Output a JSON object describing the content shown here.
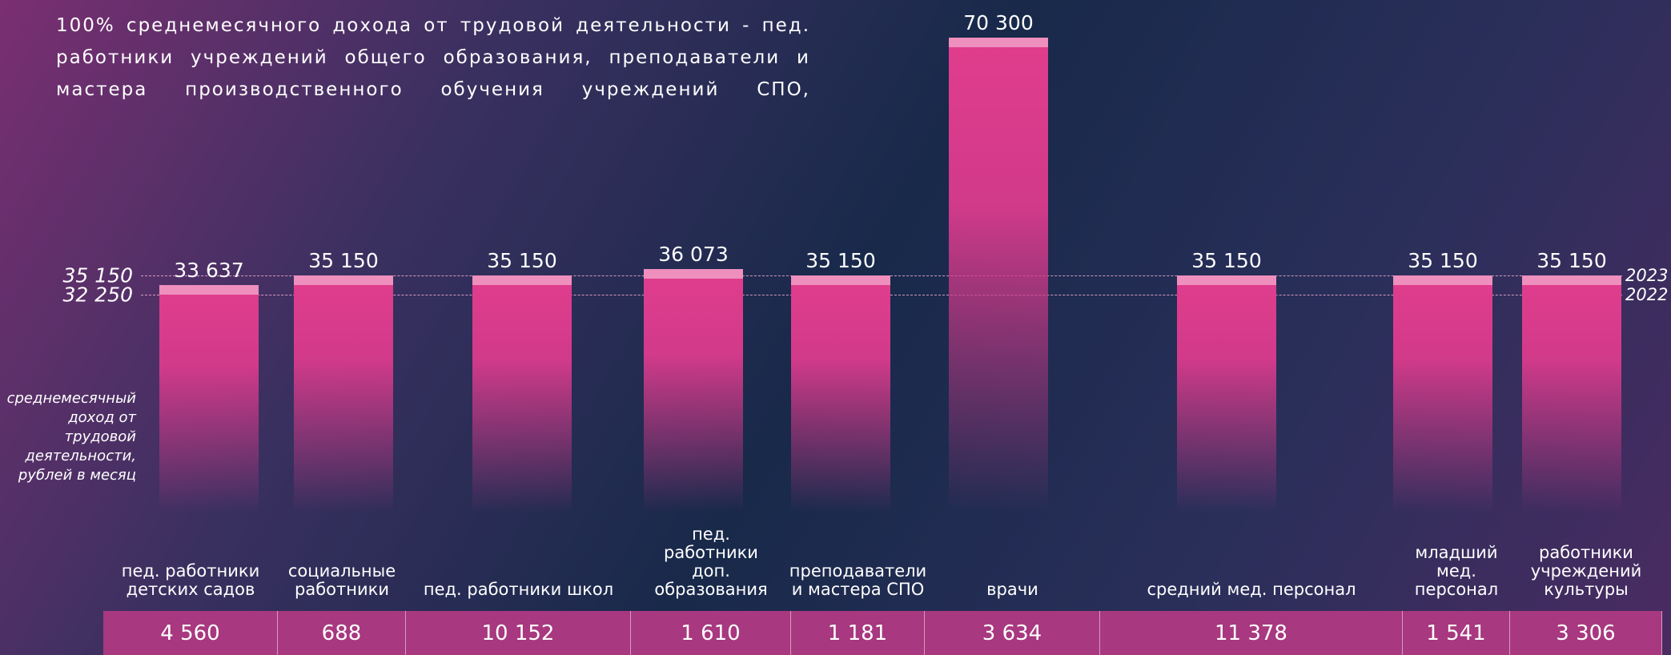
{
  "chart_data": {
    "type": "bar",
    "title": "100% среднемесячного дохода от трудовой деятельности - пед. работники учреждений общего образования, преподаватели и мастера производственного обучения учреждений СПО, работники",
    "y_label": "среднемесячный доход от трудовой деятельности, рублей в месяц",
    "categories": [
      "пед. работники\nдетских садов",
      "социальные\nработники",
      "пед. работники школ",
      "пед.\nработники\nдоп.\nобразования",
      "преподаватели\nи мастера СПО",
      "врачи",
      "средний мед. персонал",
      "младший\nмед.\nперсонал",
      "работники\nучреждений\nкультуры"
    ],
    "values": [
      33637,
      35150,
      35150,
      36073,
      35150,
      70300,
      35150,
      35150,
      35150
    ],
    "value_labels": [
      "33 637",
      "35 150",
      "35 150",
      "36 073",
      "35 150",
      "70 300",
      "35 150",
      "35 150",
      "35 150"
    ],
    "color": "#d63a8a",
    "ylim": [
      0,
      72000
    ],
    "yticks": [
      {
        "value": 35150,
        "label": "35 150"
      },
      {
        "value": 32250,
        "label": "32 250"
      }
    ],
    "ytick_notes": [
      "2023",
      "2022"
    ],
    "bottom_row": [
      "4 560",
      "688",
      "10 152",
      "1 610",
      "1 181",
      "3 634",
      "11 378",
      "1 541",
      "3 306"
    ]
  }
}
